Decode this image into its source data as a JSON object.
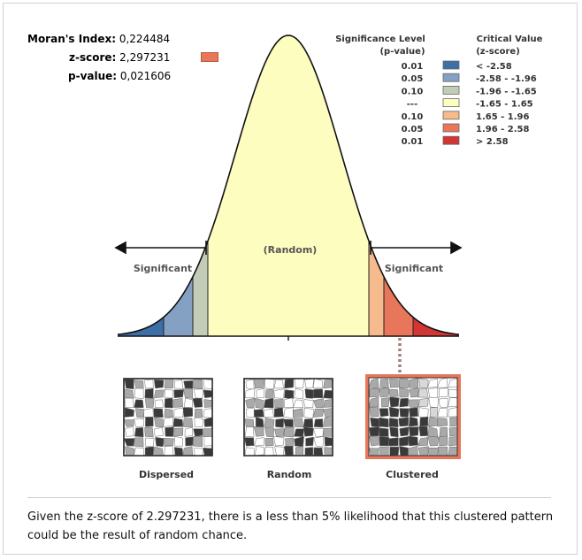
{
  "stats": {
    "morans_label": "Moran's Index:",
    "morans_value": "0,224484",
    "zscore_label": "z-score:",
    "zscore_value": "2,297231",
    "pvalue_label": "p-value:",
    "pvalue_value": "0,021606"
  },
  "legend": {
    "sig_header_1": "Significance Level",
    "sig_header_2": "(p-value)",
    "crit_header_1": "Critical Value",
    "crit_header_2": "(z-score)",
    "rows": [
      {
        "p": "0.01",
        "z": "< -2.58",
        "color": "#3d6fa6"
      },
      {
        "p": "0.05",
        "z": "-2.58 - -1.96",
        "color": "#84a1c4"
      },
      {
        "p": "0.10",
        "z": "-1.96 - -1.65",
        "color": "#c3ccb7"
      },
      {
        "p": "---",
        "z": "-1.65 - 1.65",
        "color": "#fefdc0"
      },
      {
        "p": "0.10",
        "z": "1.65 - 1.96",
        "color": "#f6bb8c"
      },
      {
        "p": "0.05",
        "z": "1.96 - 2.58",
        "color": "#e8765a"
      },
      {
        "p": "0.01",
        "z": "> 2.58",
        "color": "#d33535"
      }
    ]
  },
  "curve": {
    "random_label": "(Random)",
    "left_label": "Significant",
    "right_label": "Significant"
  },
  "panels": {
    "dispersed": "Dispersed",
    "random": "Random",
    "clustered": "Clustered"
  },
  "caption": "Given the z-score of 2.297231, there is a less than 5% likelihood that this clustered pattern could be the result of random chance.",
  "colors": {
    "highlight": "#e8765a",
    "frame": "#d2d2d2"
  }
}
